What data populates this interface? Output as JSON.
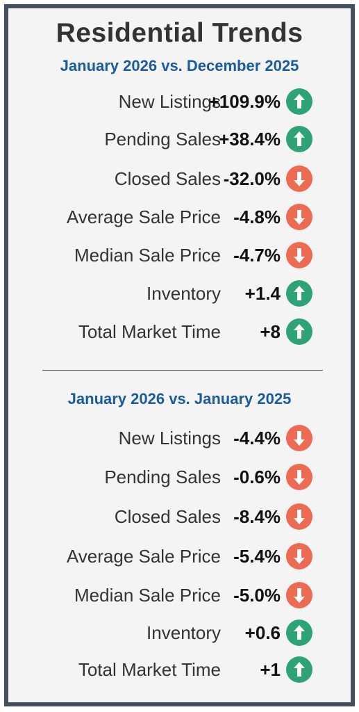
{
  "title": "Residential Trends",
  "colors": {
    "up": "#2fa378",
    "down": "#ee6b53",
    "heading_blue": "#1a5a9e",
    "border": "#44505d"
  },
  "sections": [
    {
      "heading": "January 2026 vs. December 2025",
      "rows": [
        {
          "label": "New Listings",
          "value": "+109.9%",
          "direction": "up",
          "icon": "arrow-up-icon"
        },
        {
          "label": "Pending Sales",
          "value": "+38.4%",
          "direction": "up",
          "icon": "arrow-up-icon"
        },
        {
          "label": "Closed Sales",
          "value": "-32.0%",
          "direction": "down",
          "icon": "arrow-down-icon"
        },
        {
          "label": "Average Sale Price",
          "value": "-4.8%",
          "direction": "down",
          "icon": "arrow-down-icon"
        },
        {
          "label": "Median Sale Price",
          "value": "-4.7%",
          "direction": "down",
          "icon": "arrow-down-icon"
        },
        {
          "label": "Inventory",
          "value": "+1.4",
          "direction": "up",
          "icon": "arrow-up-icon"
        },
        {
          "label": "Total Market Time",
          "value": "+8",
          "direction": "up",
          "icon": "arrow-up-icon"
        }
      ]
    },
    {
      "heading": "January 2026 vs. January 2025",
      "rows": [
        {
          "label": "New Listings",
          "value": "-4.4%",
          "direction": "down",
          "icon": "arrow-down-icon"
        },
        {
          "label": "Pending Sales",
          "value": "-0.6%",
          "direction": "down",
          "icon": "arrow-down-icon"
        },
        {
          "label": "Closed Sales",
          "value": "-8.4%",
          "direction": "down",
          "icon": "arrow-down-icon"
        },
        {
          "label": "Average Sale Price",
          "value": "-5.4%",
          "direction": "down",
          "icon": "arrow-down-icon"
        },
        {
          "label": "Median Sale Price",
          "value": "-5.0%",
          "direction": "down",
          "icon": "arrow-down-icon"
        },
        {
          "label": "Inventory",
          "value": "+0.6",
          "direction": "up",
          "icon": "arrow-up-icon"
        },
        {
          "label": "Total Market Time",
          "value": "+1",
          "direction": "up",
          "icon": "arrow-up-icon"
        }
      ]
    }
  ]
}
